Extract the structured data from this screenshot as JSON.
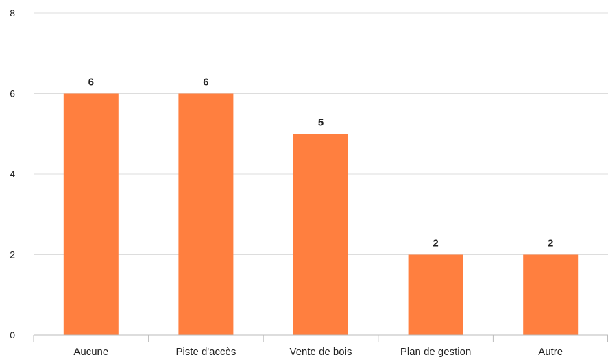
{
  "chart_data": {
    "type": "bar",
    "title": "",
    "xlabel": "",
    "ylabel": "",
    "categories": [
      "Aucune",
      "Piste d'accès",
      "Vente de bois",
      "Plan de gestion",
      "Autre"
    ],
    "values": [
      6,
      6,
      5,
      2,
      2
    ],
    "ylim": [
      0,
      8
    ],
    "yticks": [
      0,
      2,
      4,
      6,
      8
    ],
    "grid": true,
    "legend": "none",
    "data_labels": true,
    "bar_color": "#ff7f3f"
  }
}
